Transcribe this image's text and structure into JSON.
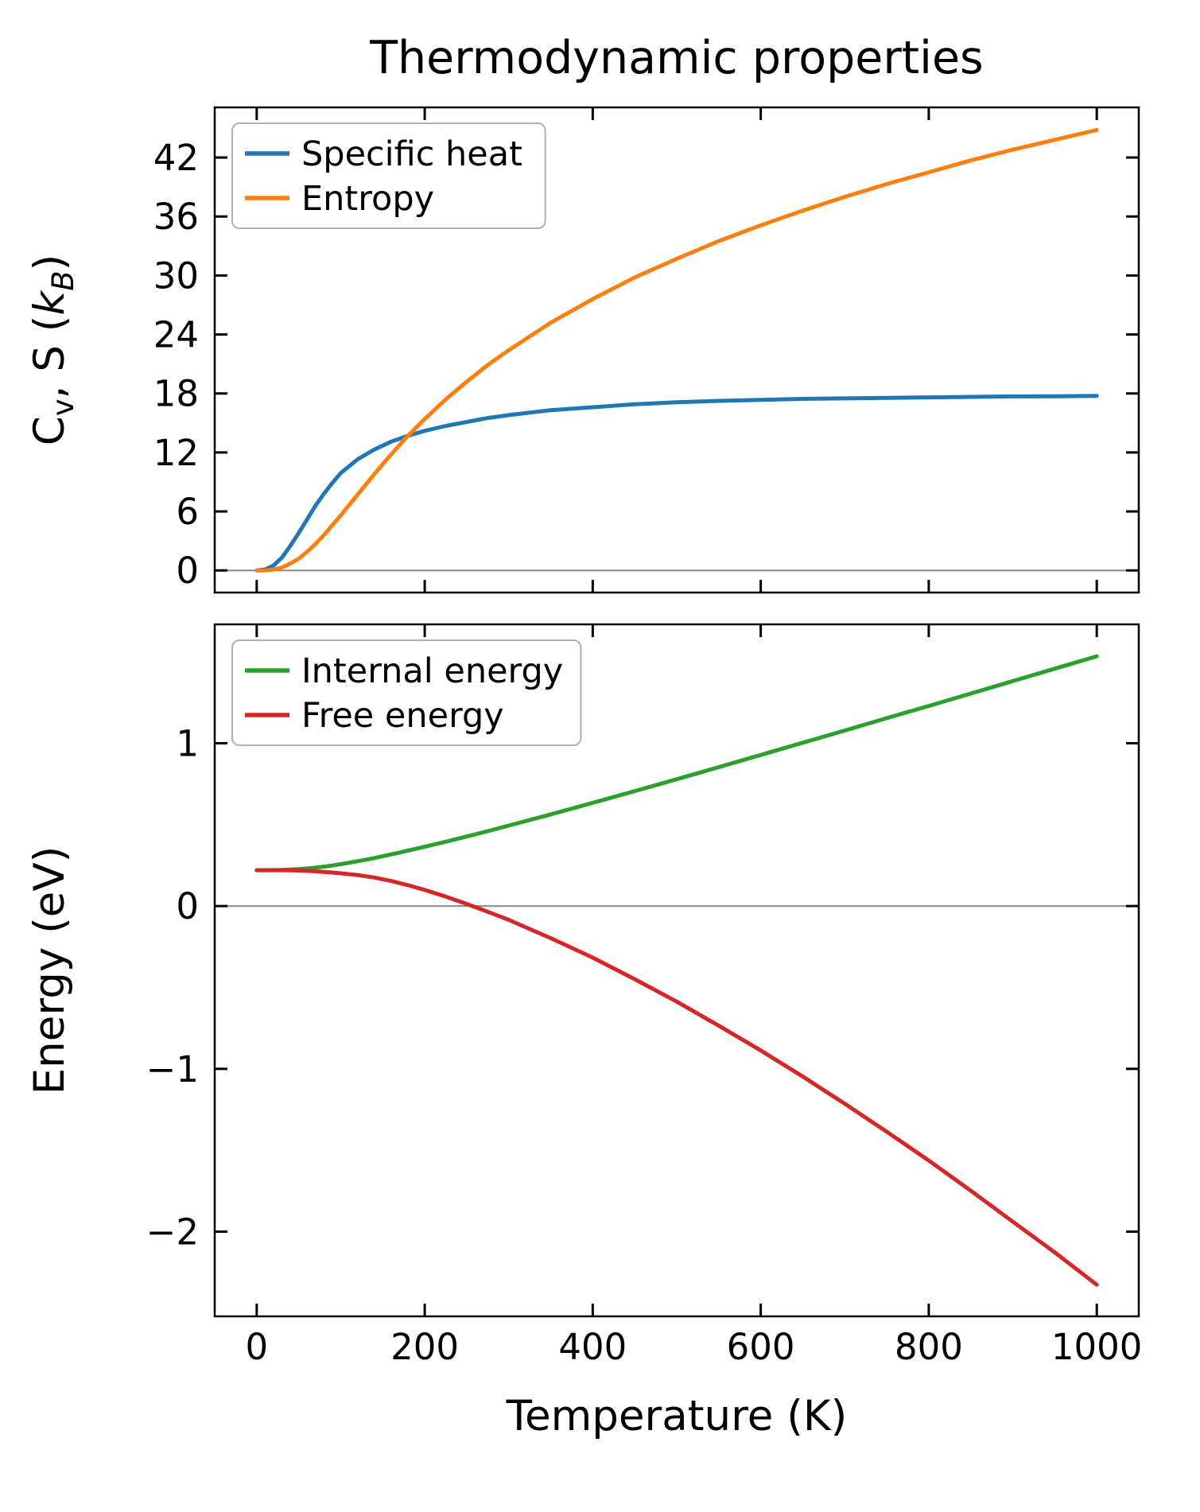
{
  "title": "Thermodynamic properties",
  "xlabel": "Temperature (K)",
  "colors": {
    "specific_heat": "#1f77b4",
    "entropy": "#ff7f0e",
    "internal_energy": "#2ca02c",
    "free_energy": "#d62728",
    "zero_line": "#888888",
    "axes": "#000000",
    "legend_border": "#b0b0b0"
  },
  "chart_data": [
    {
      "type": "line",
      "title": "",
      "ylabel": "Cv, S (kB)",
      "ylabel_parts": [
        {
          "text": "C"
        },
        {
          "text": "v",
          "sub": true
        },
        {
          "text": ", S ("
        },
        {
          "text": "k",
          "italic": true
        },
        {
          "text": "B",
          "sub": true,
          "italic": true
        },
        {
          "text": ")"
        }
      ],
      "xlim": [
        -50,
        1050
      ],
      "ylim": [
        -2.25,
        47.1
      ],
      "xticks": [
        0,
        200,
        400,
        600,
        800,
        1000
      ],
      "yticks": [
        0,
        6,
        12,
        18,
        24,
        30,
        36,
        42
      ],
      "show_xtick_labels": false,
      "grid": false,
      "zero_line": true,
      "legend_loc": "upper left",
      "x": [
        0,
        10,
        20,
        30,
        40,
        50,
        60,
        70,
        80,
        90,
        100,
        120,
        140,
        160,
        180,
        200,
        225,
        250,
        275,
        300,
        350,
        400,
        450,
        500,
        550,
        600,
        650,
        700,
        750,
        800,
        850,
        900,
        950,
        1000
      ],
      "series": [
        {
          "name": "Specific heat",
          "color": "#1f77b4",
          "values": [
            0,
            0.1,
            0.5,
            1.3,
            2.5,
            3.8,
            5.2,
            6.6,
            7.8,
            8.9,
            9.9,
            11.3,
            12.3,
            13.1,
            13.7,
            14.2,
            14.7,
            15.1,
            15.5,
            15.8,
            16.3,
            16.6,
            16.9,
            17.1,
            17.25,
            17.35,
            17.45,
            17.5,
            17.55,
            17.6,
            17.65,
            17.7,
            17.72,
            17.75
          ]
        },
        {
          "name": "Entropy",
          "color": "#ff7f0e",
          "values": [
            0,
            0.01,
            0.1,
            0.3,
            0.7,
            1.2,
            1.9,
            2.7,
            3.6,
            4.6,
            5.6,
            7.7,
            9.8,
            11.8,
            13.7,
            15.4,
            17.4,
            19.2,
            20.9,
            22.4,
            25.2,
            27.6,
            29.8,
            31.7,
            33.5,
            35.1,
            36.6,
            38.0,
            39.3,
            40.5,
            41.7,
            42.8,
            43.8,
            44.8
          ]
        }
      ]
    },
    {
      "type": "line",
      "title": "",
      "ylabel": "Energy (eV)",
      "ylabel_parts": [
        {
          "text": "Energy (eV)"
        }
      ],
      "xlim": [
        -50,
        1050
      ],
      "ylim": [
        -2.52,
        1.73
      ],
      "xticks": [
        0,
        200,
        400,
        600,
        800,
        1000
      ],
      "yticks": [
        -2,
        -1,
        0,
        1
      ],
      "show_xtick_labels": true,
      "grid": false,
      "zero_line": true,
      "legend_loc": "upper left",
      "x": [
        0,
        10,
        20,
        30,
        40,
        50,
        60,
        70,
        80,
        90,
        100,
        120,
        140,
        160,
        180,
        200,
        225,
        250,
        275,
        300,
        350,
        400,
        450,
        500,
        550,
        600,
        650,
        700,
        750,
        800,
        850,
        900,
        950,
        1000
      ],
      "series": [
        {
          "name": "Internal energy",
          "color": "#2ca02c",
          "values": [
            0.22,
            0.22,
            0.221,
            0.222,
            0.224,
            0.227,
            0.231,
            0.236,
            0.242,
            0.249,
            0.257,
            0.275,
            0.295,
            0.317,
            0.34,
            0.364,
            0.395,
            0.427,
            0.46,
            0.494,
            0.563,
            0.634,
            0.706,
            0.779,
            0.853,
            0.928,
            1.003,
            1.078,
            1.154,
            1.229,
            1.305,
            1.381,
            1.458,
            1.534
          ]
        },
        {
          "name": "Free energy",
          "color": "#d62728",
          "values": [
            0.22,
            0.22,
            0.22,
            0.22,
            0.219,
            0.218,
            0.216,
            0.213,
            0.21,
            0.206,
            0.201,
            0.19,
            0.175,
            0.154,
            0.128,
            0.099,
            0.058,
            0.013,
            -0.035,
            -0.085,
            -0.197,
            -0.317,
            -0.449,
            -0.587,
            -0.735,
            -0.887,
            -1.047,
            -1.214,
            -1.386,
            -1.563,
            -1.748,
            -1.938,
            -2.127,
            -2.326
          ]
        }
      ]
    }
  ]
}
